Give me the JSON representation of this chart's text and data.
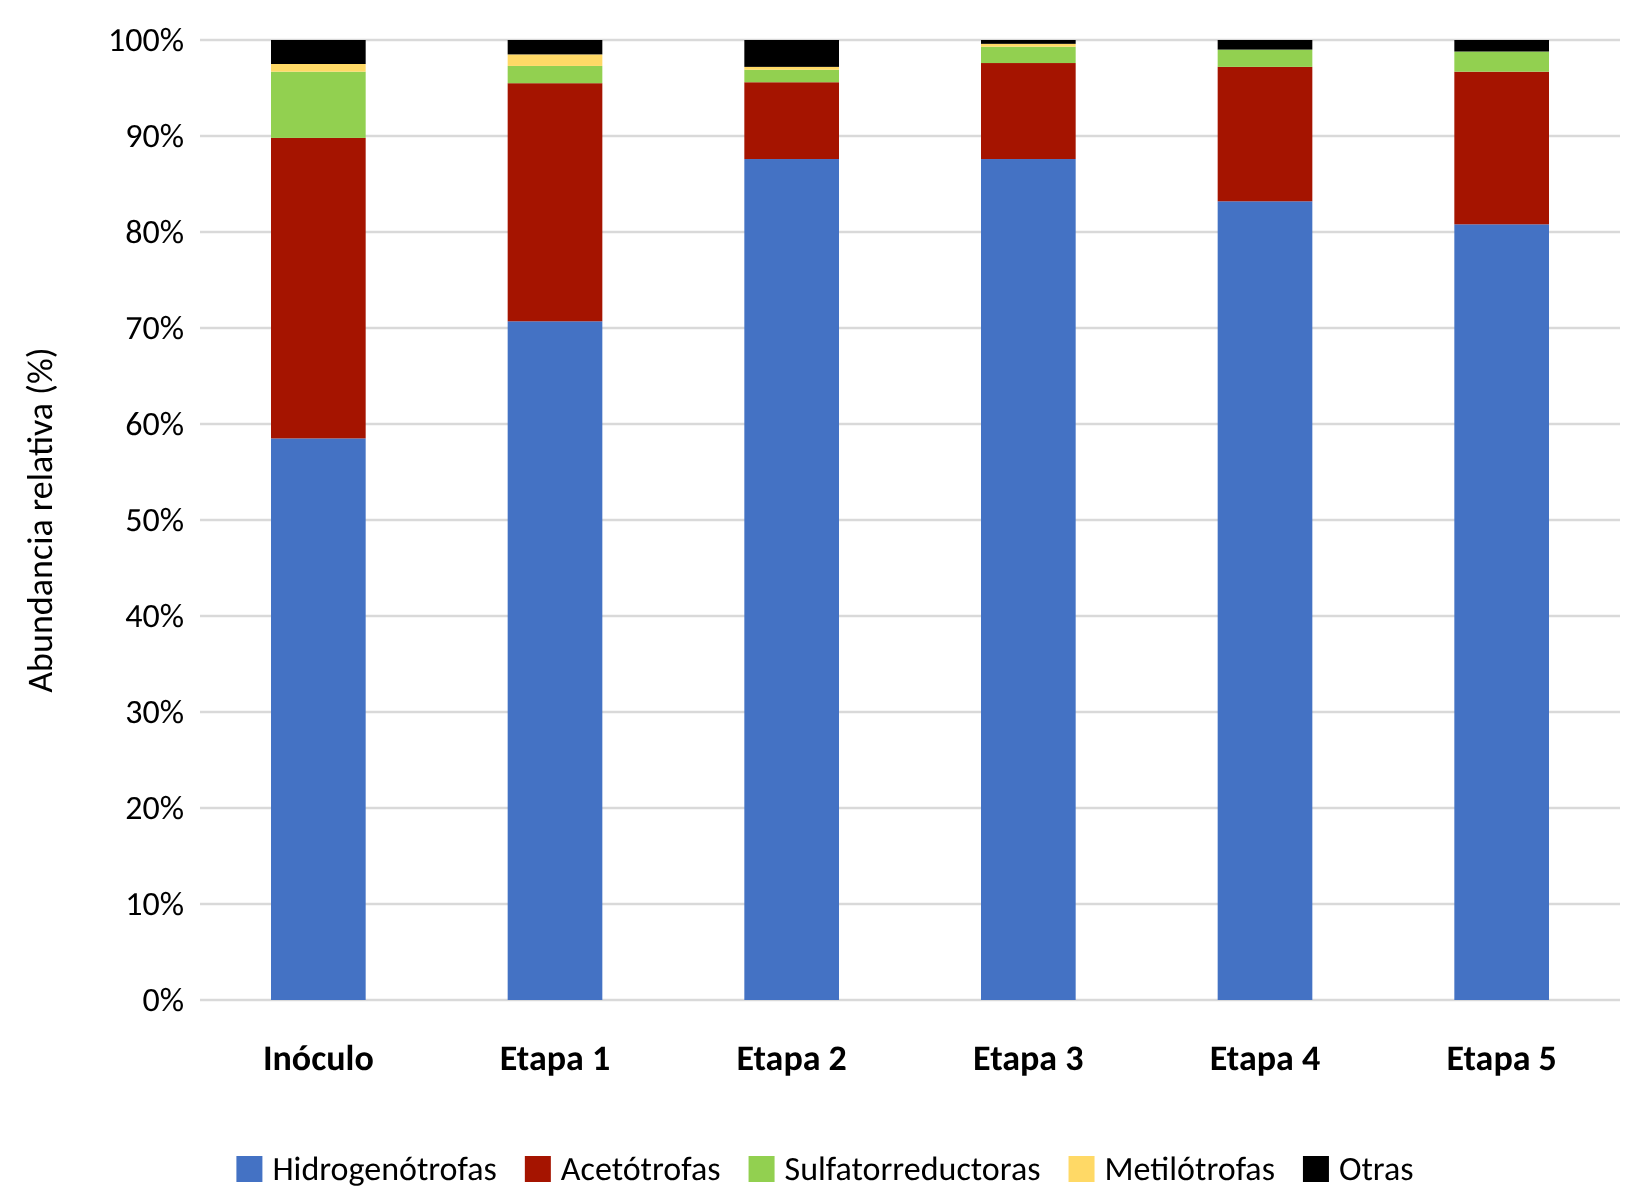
{
  "chart_data": {
    "type": "bar",
    "stacked": true,
    "ylabel": "Abundancia relativa (%)",
    "categories": [
      "Inóculo",
      "Etapa 1",
      "Etapa 2",
      "Etapa 3",
      "Etapa 4",
      "Etapa 5"
    ],
    "series": [
      {
        "name": "Hidrogenótrofas",
        "color": "#4472c4",
        "values": [
          58.5,
          70.7,
          87.6,
          87.6,
          83.2,
          80.8
        ]
      },
      {
        "name": "Acetótrofas",
        "color": "#a51400",
        "values": [
          31.3,
          24.8,
          8.0,
          10.0,
          14.0,
          15.9
        ]
      },
      {
        "name": "Sulfatorreductoras",
        "color": "#92d050",
        "values": [
          6.9,
          1.8,
          1.3,
          1.7,
          1.8,
          2.1
        ]
      },
      {
        "name": "Metilótrofas",
        "color": "#ffd966",
        "values": [
          0.8,
          1.2,
          0.3,
          0.3,
          0,
          0
        ]
      },
      {
        "name": "Otras",
        "color": "#000000",
        "values": [
          2.5,
          1.5,
          2.8,
          0.4,
          1.0,
          1.2
        ]
      }
    ],
    "ylim": [
      0,
      100
    ],
    "yticks": [
      {
        "value": 0,
        "label": "0%"
      },
      {
        "value": 10,
        "label": "10%"
      },
      {
        "value": 20,
        "label": "20%"
      },
      {
        "value": 30,
        "label": "30%"
      },
      {
        "value": 40,
        "label": "40%"
      },
      {
        "value": 50,
        "label": "50%"
      },
      {
        "value": 60,
        "label": "60%"
      },
      {
        "value": 70,
        "label": "70%"
      },
      {
        "value": 80,
        "label": "80%"
      },
      {
        "value": 90,
        "label": "90%"
      },
      {
        "value": 100,
        "label": "100%"
      }
    ],
    "grid": "y",
    "legend": "bottom"
  }
}
